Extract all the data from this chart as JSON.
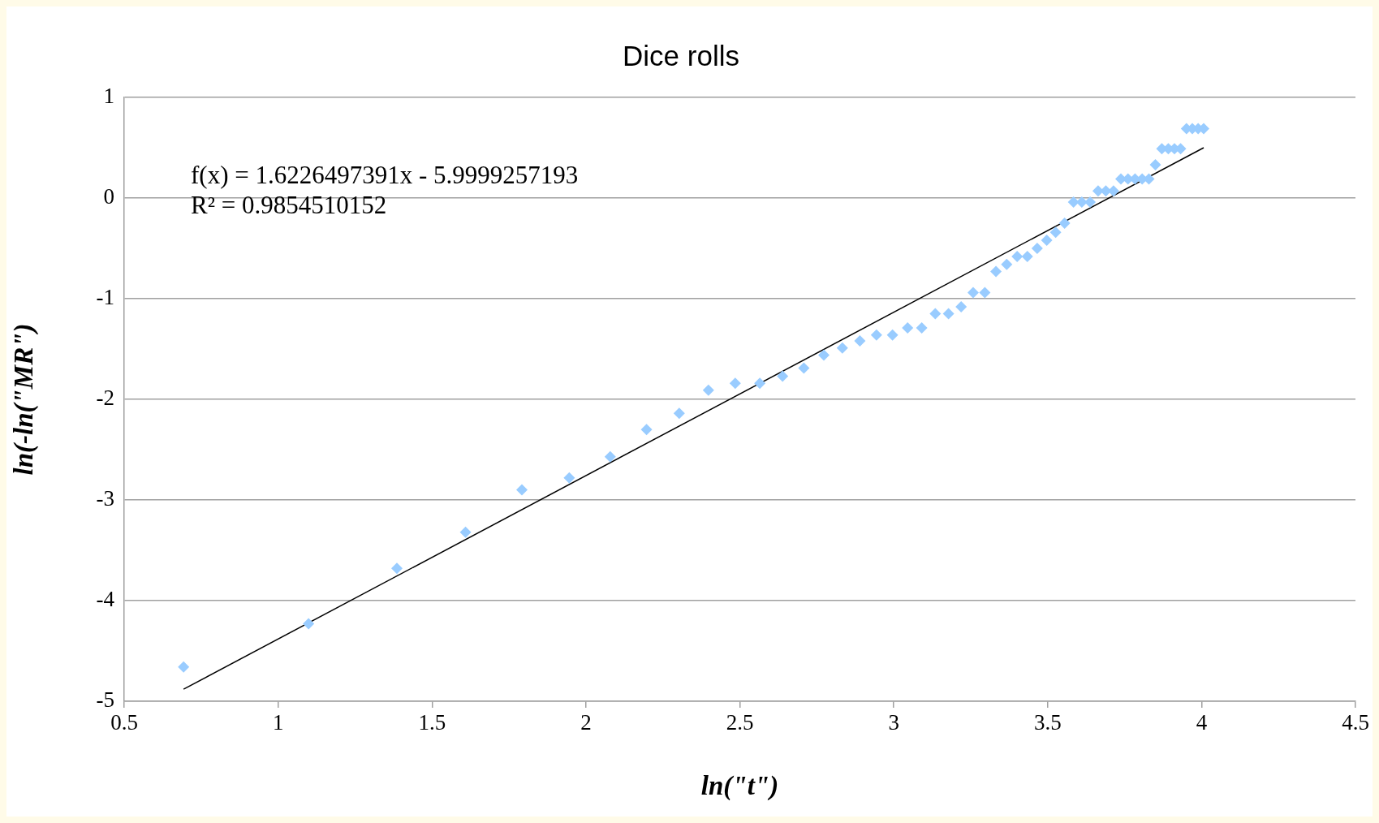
{
  "chart_data": {
    "type": "scatter",
    "title": "Dice rolls",
    "xlabel": "ln(\"t\")",
    "ylabel": "ln(-ln(\"MR\")",
    "annotations": [
      "f(x) = 1.6226497391x - 5.9999257193",
      "R² = 0.9854510152"
    ],
    "xlim": [
      0.5,
      4.5
    ],
    "xticks": [
      0.5,
      1,
      1.5,
      2,
      2.5,
      3,
      3.5,
      4,
      4.5
    ],
    "ylim": [
      -5,
      1
    ],
    "yticks": [
      -5,
      -4,
      -3,
      -2,
      -1,
      0,
      1
    ],
    "grid": "y",
    "marker": "diamond",
    "series": [
      {
        "type": "scatter",
        "color": "#99ccff",
        "x": [
          0.693,
          1.099,
          1.386,
          1.609,
          1.792,
          1.946,
          2.079,
          2.197,
          2.303,
          2.398,
          2.485,
          2.565,
          2.639,
          2.708,
          2.773,
          2.833,
          2.89,
          2.944,
          2.996,
          3.045,
          3.091,
          3.135,
          3.178,
          3.219,
          3.258,
          3.296,
          3.332,
          3.367,
          3.401,
          3.434,
          3.466,
          3.497,
          3.526,
          3.555,
          3.584,
          3.611,
          3.638,
          3.664,
          3.689,
          3.714,
          3.738,
          3.761,
          3.784,
          3.807,
          3.829,
          3.85,
          3.871,
          3.892,
          3.912,
          3.932,
          3.951,
          3.97,
          3.989,
          4.007
        ],
        "values": [
          -4.66,
          -4.23,
          -3.68,
          -3.32,
          -2.9,
          -2.78,
          -2.57,
          -2.3,
          -2.14,
          -1.91,
          -1.84,
          -1.84,
          -1.77,
          -1.69,
          -1.56,
          -1.49,
          -1.42,
          -1.36,
          -1.36,
          -1.29,
          -1.29,
          -1.15,
          -1.15,
          -1.08,
          -0.94,
          -0.94,
          -0.73,
          -0.66,
          -0.58,
          -0.58,
          -0.5,
          -0.42,
          -0.34,
          -0.25,
          -0.04,
          -0.04,
          -0.04,
          0.07,
          0.07,
          0.07,
          0.19,
          0.19,
          0.19,
          0.19,
          0.19,
          0.33,
          0.49,
          0.49,
          0.49,
          0.49,
          0.69,
          0.69,
          0.69,
          0.69
        ]
      },
      {
        "type": "line",
        "marker": "none",
        "color": "#000000",
        "x": [
          0.693,
          4.007
        ],
        "values": [
          -4.88,
          0.5
        ]
      }
    ]
  }
}
